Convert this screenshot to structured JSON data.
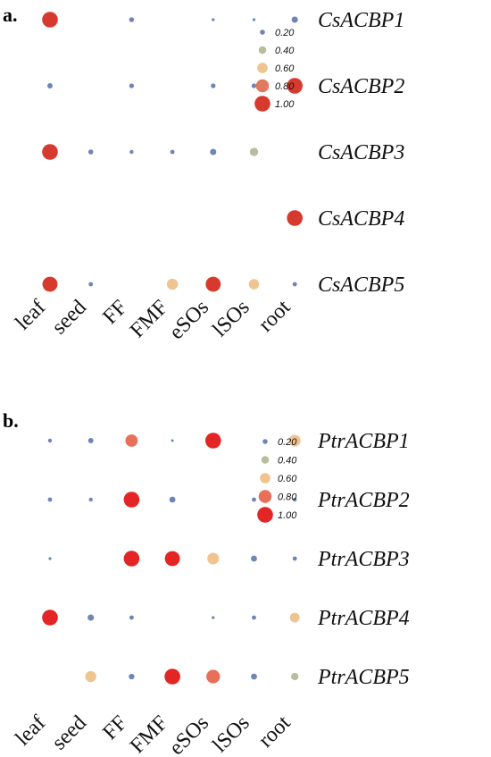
{
  "chart_data": [
    {
      "type": "scatter",
      "panel_label": "a.",
      "categories": [
        "leaf",
        "seed",
        "FF",
        "FMF",
        "eSOs",
        "lSOs",
        "root"
      ],
      "genes": [
        "CsACBP1",
        "CsACBP2",
        "CsACBP3",
        "CsACBP4",
        "CsACBP5"
      ],
      "values": [
        [
          1.0,
          null,
          0.2,
          null,
          0.05,
          0.05,
          0.3
        ],
        [
          0.22,
          null,
          0.18,
          null,
          0.18,
          0.18,
          1.0
        ],
        [
          1.0,
          0.2,
          0.12,
          0.15,
          0.3,
          0.45,
          null
        ],
        [
          null,
          null,
          null,
          null,
          null,
          null,
          1.0
        ],
        [
          0.95,
          0.15,
          null,
          0.65,
          0.95,
          0.6,
          0.15
        ]
      ],
      "legend": {
        "values": [
          0.2,
          0.4,
          0.6,
          0.8,
          1.0
        ],
        "labels": [
          "0.20",
          "0.40",
          "0.60",
          "0.80",
          "1.00"
        ],
        "colors": [
          "#6e85b7",
          "#b8bd9e",
          "#efc48e",
          "#e07a5f",
          "#d63a2f"
        ]
      }
    },
    {
      "type": "scatter",
      "panel_label": "b.",
      "categories": [
        "leaf",
        "seed",
        "FF",
        "FMF",
        "eSOs",
        "lSOs",
        "root"
      ],
      "genes": [
        "PtrACBP1",
        "PtrACBP2",
        "PtrACBP3",
        "PtrACBP4",
        "PtrACBP5"
      ],
      "values": [
        [
          0.12,
          0.22,
          0.75,
          0.02,
          1.0,
          null,
          0.7
        ],
        [
          0.15,
          0.12,
          1.0,
          0.28,
          null,
          0.15,
          0.12
        ],
        [
          0.04,
          null,
          1.0,
          0.95,
          0.7,
          0.28,
          0.15
        ],
        [
          1.0,
          0.3,
          0.15,
          null,
          0.05,
          0.15,
          0.55
        ],
        [
          null,
          0.65,
          0.25,
          1.0,
          0.85,
          0.28,
          0.38
        ]
      ],
      "legend": {
        "values": [
          0.2,
          0.4,
          0.6,
          0.8,
          1.0
        ],
        "labels": [
          "0.20",
          "0.40",
          "0.60",
          "0.80",
          "1.00"
        ],
        "colors": [
          "#6e85b7",
          "#b8bd9e",
          "#efc48e",
          "#e8705a",
          "#e32525"
        ]
      }
    }
  ]
}
